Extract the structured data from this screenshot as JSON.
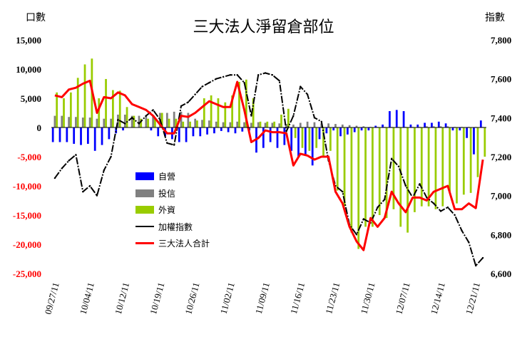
{
  "chart_data": {
    "type": "bar+line",
    "title": "三大法人淨留倉部位",
    "y_left_label": "口數",
    "y_right_label": "指數",
    "y_left_ticks": [
      "15,000",
      "10,000",
      "5,000",
      "0",
      "-5,000",
      "-10,000",
      "-15,000",
      "-20,000",
      "-25,000"
    ],
    "y_right_ticks": [
      "7,800",
      "7,600",
      "7,400",
      "7,200",
      "7,000",
      "6,800",
      "6,600"
    ],
    "ylim_left": [
      -25000,
      15000
    ],
    "ylim_right": [
      6600,
      7800
    ],
    "x_tick_labels": [
      "09/27/11",
      "10/04/11",
      "10/12/11",
      "10/19/11",
      "10/26/11",
      "11/02/11",
      "11/09/11",
      "11/16/11",
      "11/23/11",
      "11/30/11",
      "12/07/11",
      "12/14/11",
      "12/21/11"
    ],
    "x_tick_positions": [
      0,
      5,
      10,
      15,
      20,
      25,
      30,
      35,
      40,
      45,
      50,
      55,
      60
    ],
    "series": [
      {
        "name": "自營",
        "kind": "bar",
        "color": "#0000ff",
        "values": [
          -2500,
          -2500,
          -2500,
          -2800,
          -3000,
          -2800,
          -4000,
          -3000,
          -2000,
          -1000,
          -500,
          0,
          0,
          0,
          -500,
          -1500,
          -1500,
          -2000,
          -2500,
          -2500,
          -1500,
          -1500,
          -1200,
          -1000,
          -600,
          -800,
          -1000,
          -700,
          -500,
          -4300,
          -3500,
          -2500,
          -3500,
          -3000,
          -4000,
          -5000,
          -4800,
          -6500,
          -2000,
          -1000,
          -500,
          -1500,
          -1200,
          -800,
          -500,
          -500,
          300,
          500,
          2800,
          3000,
          2800,
          500,
          500,
          800,
          800,
          1000,
          700,
          -500,
          -500,
          -1800,
          -4600,
          1200
        ]
      },
      {
        "name": "投信",
        "kind": "bar",
        "color": "#808080",
        "values": [
          2000,
          2000,
          1800,
          1800,
          1700,
          1700,
          1500,
          1500,
          1500,
          2200,
          2200,
          2000,
          2000,
          2000,
          2000,
          2500,
          2500,
          2700,
          2700,
          2500,
          1500,
          1300,
          1200,
          1000,
          900,
          900,
          1000,
          900,
          800,
          900,
          800,
          800,
          700,
          600,
          500,
          800,
          1000,
          900,
          700,
          700,
          600,
          500,
          400,
          300,
          200,
          100,
          100,
          100,
          100,
          100,
          100,
          100,
          100,
          200,
          200,
          200,
          200,
          100,
          100,
          100,
          100,
          100
        ]
      },
      {
        "name": "外資",
        "kind": "bar",
        "color": "#99cc00",
        "values": [
          6000,
          5000,
          6000,
          8500,
          10800,
          11800,
          5000,
          8300,
          6400,
          6300,
          3500,
          2000,
          1500,
          1500,
          1500,
          2500,
          1500,
          1500,
          1000,
          1000,
          1200,
          5000,
          5500,
          5000,
          4300,
          5500,
          7800,
          8200,
          5000,
          1000,
          1000,
          1000,
          2200,
          3200,
          -1800,
          -3500,
          -4000,
          -3500,
          -5000,
          -4000,
          -10800,
          -13500,
          -18000,
          -20800,
          -17000,
          -17000,
          -15000,
          -15500,
          -14000,
          -17000,
          -18000,
          -14500,
          -13500,
          -13500,
          -14000,
          -13500,
          -11000,
          -13000,
          -11500,
          -11200,
          -8500,
          -5000
        ]
      },
      {
        "name": "加權指數",
        "kind": "line",
        "color": "#000000",
        "values": [
          7090,
          7140,
          7180,
          7210,
          7020,
          7050,
          7000,
          7130,
          7200,
          7390,
          7370,
          7400,
          7370,
          7410,
          7440,
          7390,
          7270,
          7260,
          7460,
          7480,
          7520,
          7560,
          7580,
          7600,
          7610,
          7620,
          7620,
          7580,
          7410,
          7620,
          7630,
          7620,
          7590,
          7330,
          7410,
          7560,
          7520,
          7400,
          7380,
          7180,
          7050,
          7020,
          6850,
          6800,
          6880,
          6860,
          6940,
          6980,
          7190,
          7150,
          7050,
          6990,
          7060,
          6990,
          6960,
          6920,
          6940,
          6900,
          6820,
          6760,
          6640,
          6680
        ]
      },
      {
        "name": "三大法人合計",
        "kind": "line",
        "color": "#ff0000",
        "values": [
          5500,
          5200,
          6500,
          6800,
          7500,
          8000,
          2500,
          5200,
          5000,
          6000,
          5500,
          4000,
          3500,
          3000,
          2000,
          500,
          -1000,
          -1000,
          2000,
          1800,
          2500,
          3500,
          4500,
          4000,
          3500,
          3500,
          7800,
          3000,
          -2500,
          -1800,
          -500,
          -800,
          -800,
          -1000,
          -6500,
          -4500,
          -4800,
          -5500,
          -5000,
          -5000,
          -11000,
          -13000,
          -17000,
          -19500,
          -21000,
          -15500,
          -17000,
          -15500,
          -11000,
          -13000,
          -14500,
          -12000,
          -12000,
          -12500,
          -11000,
          -10500,
          -10000,
          -14000,
          -14000,
          -13000,
          -13800,
          -5500
        ]
      }
    ]
  }
}
